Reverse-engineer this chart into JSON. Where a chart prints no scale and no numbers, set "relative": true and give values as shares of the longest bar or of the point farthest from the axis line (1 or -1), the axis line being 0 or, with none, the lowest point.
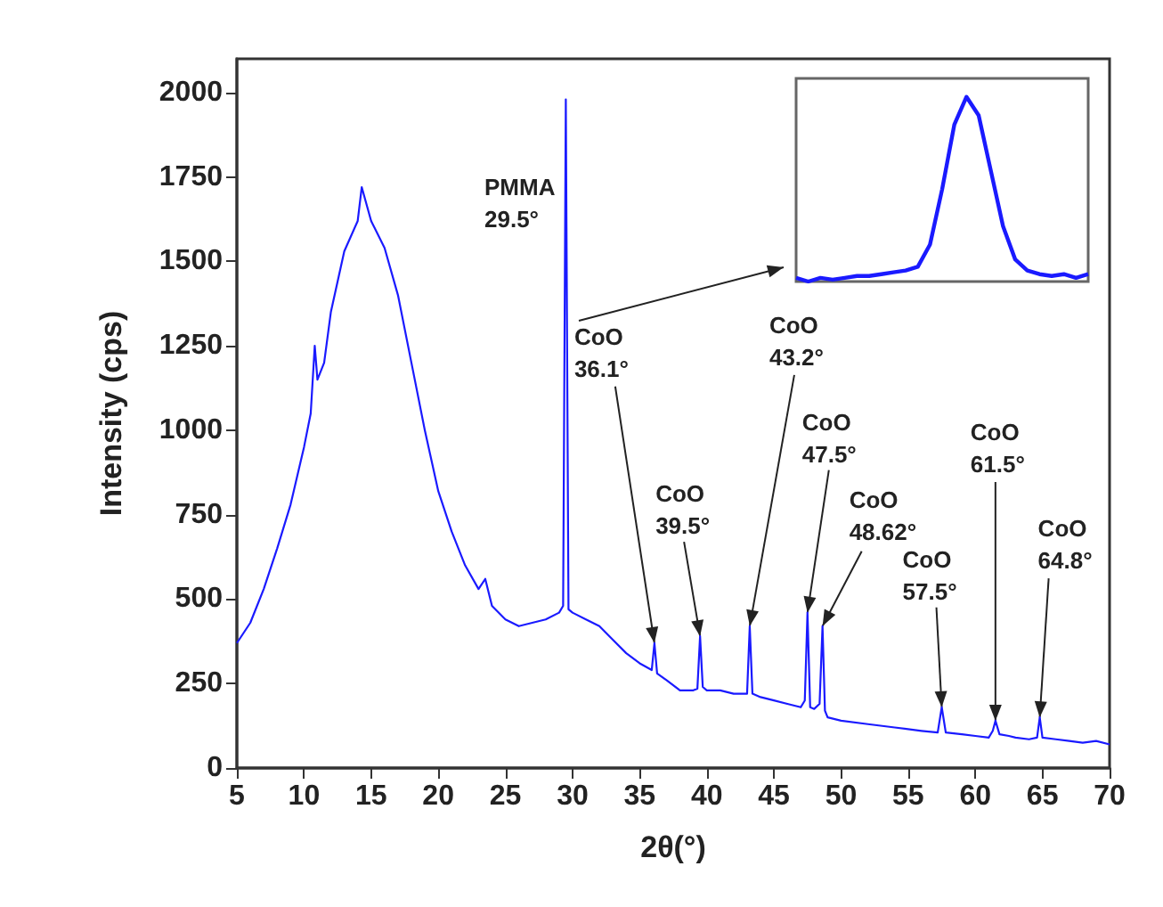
{
  "chart_data": [
    {
      "type": "line",
      "xlabel": "2θ(°)",
      "ylabel": "Intensity (cps)",
      "xlim": [
        5,
        70
      ],
      "xticks": [
        5,
        10,
        15,
        20,
        25,
        30,
        35,
        40,
        45,
        50,
        55,
        60,
        65,
        70
      ],
      "ylim": [
        0,
        2100
      ],
      "yticks": [
        0,
        250,
        500,
        750,
        1000,
        1250,
        1500,
        1750,
        2000
      ],
      "marker": "none",
      "grid": false,
      "x": [
        5,
        6,
        7,
        8,
        9,
        10,
        10.5,
        10.8,
        11,
        11.5,
        12,
        13,
        14,
        14.3,
        15,
        16,
        17,
        18,
        19,
        20,
        21,
        22,
        23,
        23.5,
        24,
        25,
        26,
        27,
        28,
        29,
        29.3,
        29.5,
        29.7,
        30,
        31,
        32,
        33,
        34,
        35,
        35.9,
        36.1,
        36.3,
        37,
        38,
        39,
        39.3,
        39.5,
        39.7,
        40,
        41,
        42,
        43,
        43.2,
        43.4,
        44,
        45,
        46,
        47,
        47.3,
        47.5,
        47.7,
        48,
        48.4,
        48.62,
        48.8,
        49,
        50,
        52,
        54,
        56,
        57.2,
        57.5,
        57.8,
        59,
        60,
        61,
        61.3,
        61.5,
        61.8,
        62.5,
        63,
        64,
        64.6,
        64.8,
        65,
        66,
        67,
        68,
        69,
        70
      ],
      "series": [
        {
          "color": "#1a1aff",
          "values": [
            370,
            430,
            530,
            650,
            780,
            950,
            1050,
            1250,
            1150,
            1200,
            1350,
            1530,
            1620,
            1720,
            1620,
            1540,
            1400,
            1200,
            1000,
            820,
            700,
            600,
            530,
            560,
            480,
            440,
            420,
            430,
            440,
            460,
            480,
            1980,
            470,
            460,
            440,
            420,
            380,
            340,
            310,
            290,
            370,
            280,
            260,
            230,
            230,
            235,
            390,
            240,
            230,
            230,
            220,
            220,
            420,
            220,
            210,
            200,
            190,
            180,
            200,
            460,
            180,
            175,
            190,
            420,
            170,
            150,
            140,
            130,
            120,
            110,
            105,
            180,
            105,
            100,
            95,
            90,
            110,
            140,
            100,
            95,
            90,
            85,
            90,
            150,
            90,
            85,
            80,
            75,
            80,
            70
          ]
        }
      ],
      "annotations": [
        "PMMA\n29.5°",
        {
          "text": "CoO\n36.1°",
          "x": 36.1,
          "y": 370
        },
        {
          "text": "CoO\n39.5°",
          "x": 39.5,
          "y": 390
        },
        {
          "text": "CoO\n43.2°",
          "x": 43.2,
          "y": 420
        },
        {
          "text": "CoO\n47.5°",
          "x": 47.5,
          "y": 460
        },
        {
          "text": "CoO\n48.62°",
          "x": 48.62,
          "y": 420
        },
        {
          "text": "CoO\n57.5°",
          "x": 57.5,
          "y": 180
        },
        {
          "text": "CoO\n61.5°",
          "x": 61.5,
          "y": 140
        },
        {
          "text": "CoO\n64.8°",
          "x": 64.8,
          "y": 150
        }
      ]
    },
    {
      "type": "line",
      "relative": true,
      "marker": "none",
      "categories": [
        null,
        null,
        null,
        null,
        null,
        null,
        null,
        null,
        null,
        null,
        null,
        null,
        null,
        null,
        null,
        null,
        null,
        null,
        null,
        null,
        null,
        null,
        null,
        null,
        null
      ],
      "series": [
        {
          "color": "#1a1aff",
          "values": [
            0.02,
            0.0,
            0.02,
            0.01,
            0.02,
            0.03,
            0.03,
            0.04,
            0.05,
            0.06,
            0.08,
            0.2,
            0.5,
            0.85,
            1.0,
            0.9,
            0.6,
            0.3,
            0.12,
            0.06,
            0.04,
            0.03,
            0.04,
            0.02,
            0.04
          ]
        }
      ]
    }
  ]
}
